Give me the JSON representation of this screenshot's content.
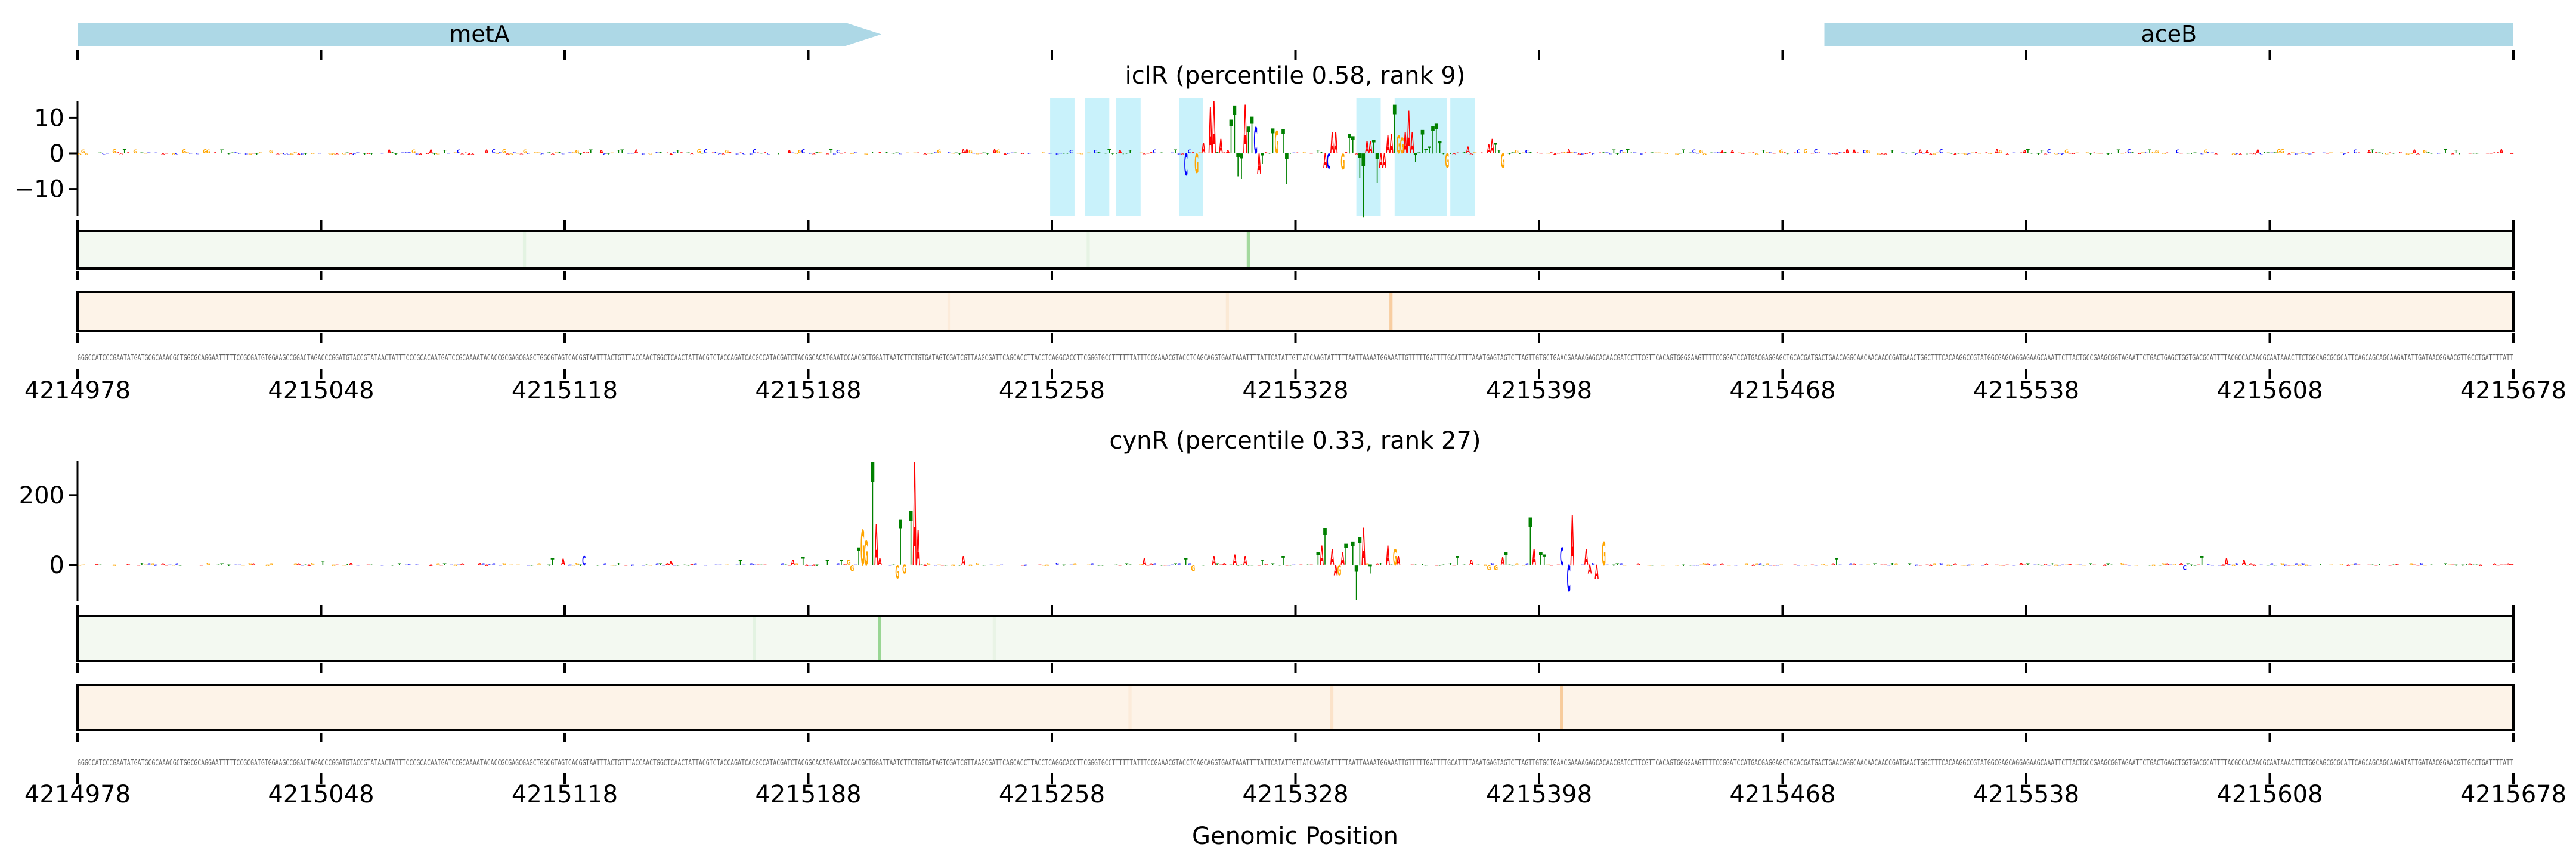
{
  "chart_data": {
    "type": "sequence-logo-tracks",
    "xlabel": "Genomic Position",
    "x_range": [
      4214978,
      4215678
    ],
    "x_ticks": [
      4214978,
      4215048,
      4215118,
      4215188,
      4215258,
      4215328,
      4215398,
      4215468,
      4215538,
      4215608,
      4215678
    ],
    "colors": {
      "A": "#ff0000",
      "C": "#0000ff",
      "G": "#ffa500",
      "T": "#008000",
      "gene": "#add8e6",
      "highlight": "#c9f2fb",
      "green_bg": "#f3f9f1",
      "green_peak": "#8fd18a",
      "orange_bg": "#fdf3e8",
      "orange_peak": "#f6c38e"
    },
    "genes": [
      {
        "name": "metA",
        "start": 4214978,
        "end": 4215209,
        "strand": "+"
      },
      {
        "name": "aceB",
        "start": 4215480,
        "end": 4215678,
        "strand": "+"
      }
    ],
    "sequence": "GGGCCATCCCGAATATGATGCGCAAACGCTGGCGCAGGAATTTTTCCGCGATGTGGAAGCCGGACTAGACCCGGATGTACCGTATAACTATTTCCCGCACAATGATCCGCAAAATACACCGCGAGCGAGCTGGCGTAGTCACGGTAATTTACTGTTTACCAACTGGCTCAACTATTACGTCTACCAGATCACGCCATACGATCTACGGCACATGAATCCAACGCTGGATTAATCTTCTGTGATAGTCGATCGTTAAGCGATTCAGCACCTTACCTCAGGCACCTTCGGGTGCCTTTTTTATTTCCGAAACGTACCTCAGCAGGTGAATAAATTTTATTCATATTGTTATCAAGTATTTTTAATTAAAATGGAAATTGTTTTTGATTTTGCATTTTAAATGAGTAGTCTTAGTTGTGCTGAACGAAAAGAGCACAACGATCCTTCGTTCACAGTGGGGAAGTTTTCCGGATCCATGACGAGGAGCTGCACGATGACTGAACAGGCAACAACAACCGATGAACTGGCTTTCACAAGGCCGTATGGCGAGCAGGAGAAGCAAATTCTTACTGCCGAAGCGGTAGAATTCTGACTGAGCTGGTGACGCATTTTACGCCACAACGCAATAAACTTCTGGCAGCGCGCATTCAGCAGCAGCAAGATATTGATAACGGAACGTTGCCTGATTTTATT",
    "panels": [
      {
        "title": "iclR (percentile 0.58, rank 9)",
        "ylim": [
          -17.8,
          14.6
        ],
        "yticks": [
          10,
          0,
          -10
        ],
        "background_amplitude": 1.4,
        "highlights": [
          [
            279.5,
            286.5
          ],
          [
            289.5,
            296.5
          ],
          [
            298.5,
            305.5
          ],
          [
            316.5,
            323.5
          ],
          [
            367.5,
            374.5
          ],
          [
            378.5,
            393.5
          ],
          [
            394.5,
            401.5
          ]
        ],
        "peaks": [
          [
            318,
            -6.2,
            "C"
          ],
          [
            321,
            -5.5,
            "G"
          ],
          [
            323,
            3,
            "A"
          ],
          [
            325,
            13,
            "A"
          ],
          [
            326,
            14.6,
            "A"
          ],
          [
            328,
            4,
            "A"
          ],
          [
            331,
            9.5,
            "T"
          ],
          [
            332,
            13.4,
            "T"
          ],
          [
            333,
            -6.5,
            "T"
          ],
          [
            334,
            -7.2,
            "T"
          ],
          [
            335,
            13.7,
            "A"
          ],
          [
            336,
            7.5,
            "T"
          ],
          [
            337,
            10.3,
            "T"
          ],
          [
            338,
            7.4,
            "C"
          ],
          [
            339,
            -5.7,
            "A"
          ],
          [
            340,
            -3,
            "T"
          ],
          [
            343,
            7,
            "T"
          ],
          [
            344,
            6.3,
            "G"
          ],
          [
            346,
            6.9,
            "T"
          ],
          [
            347,
            -8.6,
            "T"
          ],
          [
            358,
            -4,
            "A"
          ],
          [
            359,
            -4.3,
            "C"
          ],
          [
            360,
            6,
            "A"
          ],
          [
            361,
            6,
            "A"
          ],
          [
            363,
            -4.5,
            "G"
          ],
          [
            365,
            5.5,
            "T"
          ],
          [
            366,
            4.8,
            "T"
          ],
          [
            368,
            -7,
            "T"
          ],
          [
            369,
            -18,
            "T"
          ],
          [
            370,
            3.5,
            "A"
          ],
          [
            371,
            3.5,
            "A"
          ],
          [
            372,
            3.8,
            "T"
          ],
          [
            373,
            -8.3,
            "T"
          ],
          [
            374,
            -4,
            "A"
          ],
          [
            375,
            -4,
            "A"
          ],
          [
            376,
            5,
            "A"
          ],
          [
            377,
            5.5,
            "A"
          ],
          [
            378,
            13.7,
            "T"
          ],
          [
            379,
            5,
            "G"
          ],
          [
            380,
            4.5,
            "G"
          ],
          [
            381,
            6,
            "A"
          ],
          [
            382,
            12,
            "A"
          ],
          [
            383,
            6,
            "A"
          ],
          [
            384,
            -2.5,
            "T"
          ],
          [
            386,
            6.5,
            "T"
          ],
          [
            388,
            2,
            "T"
          ],
          [
            389,
            7.7,
            "T"
          ],
          [
            390,
            8.3,
            "T"
          ],
          [
            391,
            3.5,
            "T"
          ],
          [
            393,
            -4,
            "G"
          ],
          [
            399,
            2,
            "A"
          ],
          [
            405,
            2.5,
            "A"
          ],
          [
            406,
            4,
            "A"
          ],
          [
            407,
            3,
            "T"
          ],
          [
            409,
            -4,
            "G"
          ]
        ],
        "green_stripes": [
          [
            336,
            0.8
          ],
          [
            128,
            0.15
          ],
          [
            290,
            0.12
          ]
        ],
        "orange_stripes": [
          [
            377,
            0.8
          ],
          [
            250,
            0.15
          ],
          [
            330,
            0.2
          ]
        ]
      },
      {
        "title": "cynR (percentile 0.33, rank 27)",
        "ylim": [
          -104,
          297
        ],
        "yticks": [
          200,
          0
        ],
        "background_amplitude": 6,
        "highlights": [],
        "peaks": [
          [
            70,
            12,
            "T"
          ],
          [
            136,
            20,
            "T"
          ],
          [
            139,
            18,
            "A"
          ],
          [
            145,
            25,
            "C"
          ],
          [
            170,
            12,
            "A"
          ],
          [
            190,
            14,
            "T"
          ],
          [
            205,
            15,
            "A"
          ],
          [
            208,
            22,
            "T"
          ],
          [
            215,
            14,
            "T"
          ],
          [
            219,
            14,
            "T"
          ],
          [
            221,
            15,
            "G"
          ],
          [
            222,
            -18,
            "G"
          ],
          [
            224,
            50,
            "T"
          ],
          [
            225,
            100,
            "G"
          ],
          [
            226,
            70,
            "G"
          ],
          [
            228,
            295,
            "T"
          ],
          [
            229,
            118,
            "A"
          ],
          [
            230,
            20,
            "A"
          ],
          [
            235,
            -38,
            "G"
          ],
          [
            236,
            130,
            "T"
          ],
          [
            237,
            -25,
            "G"
          ],
          [
            239,
            155,
            "T"
          ],
          [
            240,
            295,
            "A"
          ],
          [
            241,
            100,
            "A"
          ],
          [
            254,
            25,
            "A"
          ],
          [
            306,
            20,
            "A"
          ],
          [
            318,
            20,
            "T"
          ],
          [
            320,
            -18,
            "G"
          ],
          [
            326,
            25,
            "A"
          ],
          [
            332,
            30,
            "A"
          ],
          [
            335,
            25,
            "A"
          ],
          [
            340,
            15,
            "T"
          ],
          [
            346,
            25,
            "T"
          ],
          [
            356,
            35,
            "T"
          ],
          [
            357,
            55,
            "A"
          ],
          [
            358,
            105,
            "T"
          ],
          [
            360,
            45,
            "A"
          ],
          [
            361,
            -30,
            "A"
          ],
          [
            362,
            -30,
            "G"
          ],
          [
            363,
            35,
            "A"
          ],
          [
            364,
            60,
            "T"
          ],
          [
            366,
            67,
            "T"
          ],
          [
            367,
            -100,
            "T"
          ],
          [
            368,
            79,
            "T"
          ],
          [
            369,
            107,
            "A"
          ],
          [
            371,
            -25,
            "T"
          ],
          [
            376,
            55,
            "A"
          ],
          [
            378,
            45,
            "G"
          ],
          [
            379,
            25,
            "A"
          ],
          [
            396,
            25,
            "T"
          ],
          [
            400,
            15,
            "A"
          ],
          [
            405,
            -15,
            "G"
          ],
          [
            407,
            -15,
            "G"
          ],
          [
            409,
            22,
            "A"
          ],
          [
            410,
            35,
            "T"
          ],
          [
            417,
            136,
            "T"
          ],
          [
            418,
            45,
            "A"
          ],
          [
            420,
            35,
            "T"
          ],
          [
            421,
            30,
            "T"
          ],
          [
            426,
            50,
            "C"
          ],
          [
            428,
            -75,
            "C"
          ],
          [
            429,
            142,
            "A"
          ],
          [
            433,
            45,
            "A"
          ],
          [
            434,
            -25,
            "A"
          ],
          [
            436,
            -40,
            "A"
          ],
          [
            438,
            65,
            "G"
          ],
          [
            505,
            20,
            "T"
          ],
          [
            605,
            -15,
            "C"
          ],
          [
            610,
            25,
            "T"
          ],
          [
            617,
            20,
            "A"
          ],
          [
            622,
            15,
            "A"
          ]
        ],
        "green_stripes": [
          [
            230,
            0.9
          ],
          [
            194,
            0.15
          ],
          [
            263,
            0.1
          ]
        ],
        "orange_stripes": [
          [
            426,
            0.85
          ],
          [
            360,
            0.35
          ],
          [
            302,
            0.15
          ]
        ]
      }
    ]
  }
}
